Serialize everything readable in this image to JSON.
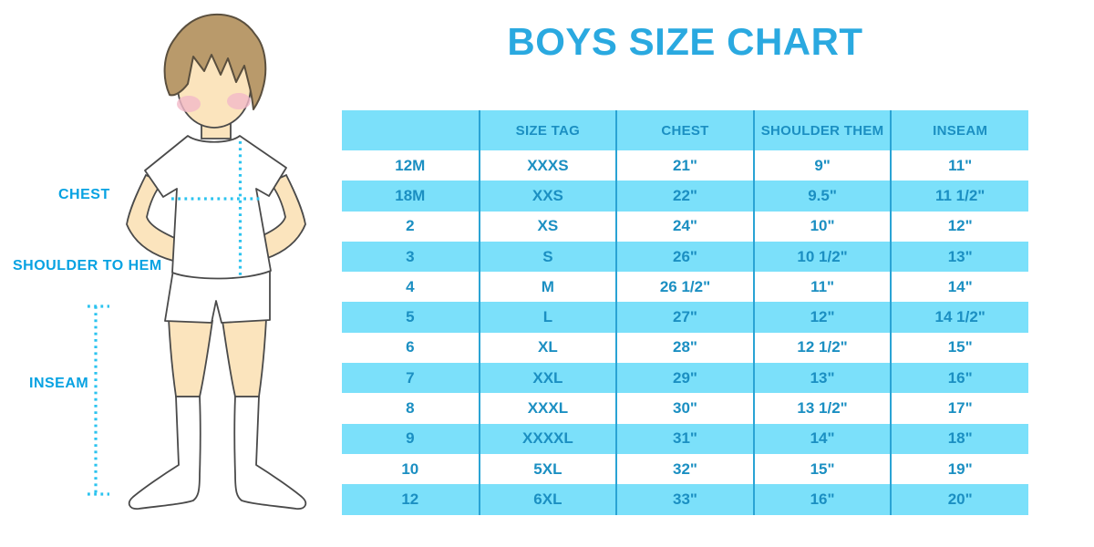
{
  "title": "BOYS SIZE CHART",
  "illustration": {
    "figure": "boy-front-view",
    "labels": {
      "chest": "CHEST",
      "shoulder_to_hem": "SHOULDER TO HEM",
      "inseam": "INSEAM"
    }
  },
  "table": {
    "headers": [
      "",
      "SIZE TAG",
      "CHEST",
      "SHOULDER THEM",
      "INSEAM"
    ],
    "rows": [
      [
        "12M",
        "XXXS",
        "21\"",
        "9\"",
        "11\""
      ],
      [
        "18M",
        "XXS",
        "22\"",
        "9.5\"",
        "11 1/2\""
      ],
      [
        "2",
        "XS",
        "24\"",
        "10\"",
        "12\""
      ],
      [
        "3",
        "S",
        "26\"",
        "10 1/2\"",
        "13\""
      ],
      [
        "4",
        "M",
        "26 1/2\"",
        "11\"",
        "14\""
      ],
      [
        "5",
        "L",
        "27\"",
        "12\"",
        "14 1/2\""
      ],
      [
        "6",
        "XL",
        "28\"",
        "12 1/2\"",
        "15\""
      ],
      [
        "7",
        "XXL",
        "29\"",
        "13\"",
        "16\""
      ],
      [
        "8",
        "XXXL",
        "30\"",
        "13 1/2\"",
        "17\""
      ],
      [
        "9",
        "XXXXL",
        "31\"",
        "14\"",
        "18\""
      ],
      [
        "10",
        "5XL",
        "32\"",
        "15\"",
        "19\""
      ],
      [
        "12",
        "6XL",
        "33\"",
        "16\"",
        "20\""
      ]
    ]
  },
  "colors": {
    "accent_blue": "#2aa9e0",
    "label_blue": "#07a2e2",
    "table_text": "#1b8fc2",
    "row_light": "#7be0fa",
    "divider": "#2aa3d4",
    "dotted": "#2cc3ef",
    "skin": "#fbe4bd",
    "hair": "#b99a6b",
    "blush": "#f2b9c8"
  }
}
